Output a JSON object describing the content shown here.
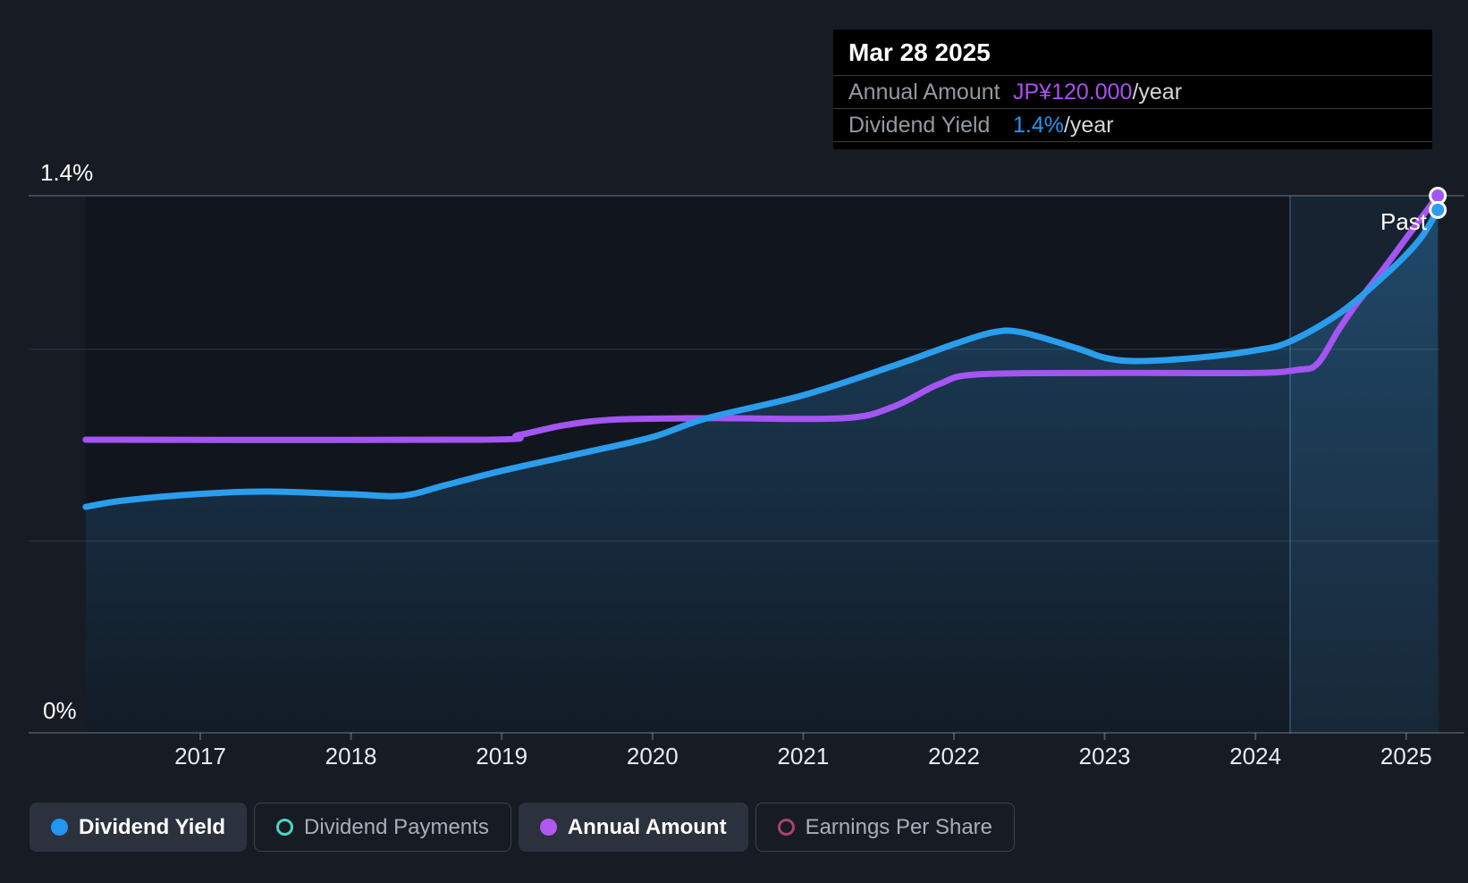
{
  "tooltip": {
    "date": "Mar 28 2025",
    "rows": [
      {
        "label": "Annual Amount",
        "value": "JP¥120.000",
        "suffix": "/year",
        "value_color": "#ab4ff2"
      },
      {
        "label": "Dividend Yield",
        "value": "1.4%",
        "suffix": "/year",
        "value_color": "#2196f3"
      }
    ]
  },
  "axis": {
    "y_top_label": "1.4%",
    "y_bottom_label": "0%",
    "past_label": "Past"
  },
  "legend": {
    "items": [
      {
        "label": "Dividend Yield",
        "style": "dot",
        "color": "#2196f3",
        "active": true
      },
      {
        "label": "Dividend Payments",
        "style": "ring",
        "color": "#46d8c2",
        "active": false
      },
      {
        "label": "Annual Amount",
        "style": "dot",
        "color": "#b158f2",
        "active": true
      },
      {
        "label": "Earnings Per Share",
        "style": "ring",
        "color": "#ad4170",
        "active": false
      }
    ]
  },
  "chart_data": {
    "type": "line",
    "x_ticks": [
      2017,
      2018,
      2019,
      2020,
      2021,
      2022,
      2023,
      2024,
      2025
    ],
    "x_range": [
      2016.24,
      2025.21
    ],
    "past_marker_x": 2024.23,
    "y_left_axis": {
      "label_top": "1.4%",
      "label_bottom": "0%",
      "unit": "%",
      "lim": [
        0,
        1.4
      ],
      "gridlines": [
        0,
        0.5,
        1.0,
        1.4
      ]
    },
    "y_right_axis": {
      "unit": "JP¥/year",
      "lim": [
        0,
        120
      ]
    },
    "grid": true,
    "legend_position": "bottom",
    "series": [
      {
        "name": "Dividend Yield",
        "unit": "%",
        "axis": "percent",
        "color": "#2b9ded",
        "area_fill": true,
        "end_value_label": "1.4%/year",
        "points": [
          [
            2016.24,
            0.589
          ],
          [
            2016.5,
            0.606
          ],
          [
            2017.0,
            0.623
          ],
          [
            2017.45,
            0.629
          ],
          [
            2018.0,
            0.622
          ],
          [
            2018.34,
            0.618
          ],
          [
            2018.62,
            0.645
          ],
          [
            2019.0,
            0.683
          ],
          [
            2019.53,
            0.729
          ],
          [
            2020.0,
            0.771
          ],
          [
            2020.36,
            0.82
          ],
          [
            2021.0,
            0.88
          ],
          [
            2021.6,
            0.957
          ],
          [
            2022.0,
            1.013
          ],
          [
            2022.26,
            1.044
          ],
          [
            2022.45,
            1.044
          ],
          [
            2022.82,
            1.002
          ],
          [
            2023.0,
            0.978
          ],
          [
            2023.21,
            0.969
          ],
          [
            2023.62,
            0.978
          ],
          [
            2024.0,
            0.997
          ],
          [
            2024.23,
            1.02
          ],
          [
            2024.57,
            1.097
          ],
          [
            2024.89,
            1.204
          ],
          [
            2025.09,
            1.286
          ],
          [
            2025.21,
            1.363
          ]
        ]
      },
      {
        "name": "Annual Amount",
        "unit": "JP¥",
        "axis": "yen",
        "color": "#a455f2",
        "area_fill": false,
        "end_value_label": "JP¥120.000/year",
        "points": [
          [
            2016.24,
            65.5
          ],
          [
            2018.85,
            65.5
          ],
          [
            2019.11,
            66.5
          ],
          [
            2019.41,
            68.7
          ],
          [
            2019.76,
            70.0
          ],
          [
            2020.42,
            70.3
          ],
          [
            2021.27,
            70.3
          ],
          [
            2021.6,
            72.9
          ],
          [
            2021.9,
            77.9
          ],
          [
            2022.17,
            80.1
          ],
          [
            2023.09,
            80.4
          ],
          [
            2024.0,
            80.4
          ],
          [
            2024.28,
            81.1
          ],
          [
            2024.41,
            82.4
          ],
          [
            2024.55,
            89.9
          ],
          [
            2024.67,
            95.8
          ],
          [
            2024.84,
            103.2
          ],
          [
            2025.02,
            111.4
          ],
          [
            2025.21,
            120.0
          ]
        ]
      }
    ]
  }
}
